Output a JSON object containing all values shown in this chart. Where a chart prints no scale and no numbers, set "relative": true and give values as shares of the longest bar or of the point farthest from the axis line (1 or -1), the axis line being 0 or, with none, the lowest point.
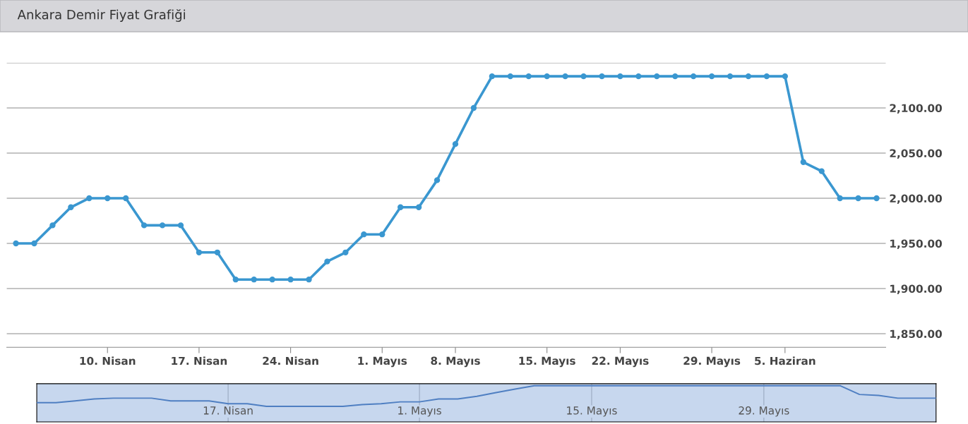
{
  "chart_data": [
    {
      "type": "line",
      "title": "Ankara Demir Fiyat Grafiği",
      "categories": [
        null,
        null,
        null,
        null,
        null,
        "10. Nisan",
        null,
        null,
        null,
        null,
        "17. Nisan",
        null,
        null,
        null,
        null,
        "24. Nisan",
        null,
        null,
        null,
        null,
        "1. Mayıs",
        null,
        null,
        null,
        "8. Mayıs",
        null,
        null,
        null,
        null,
        "15. Mayıs",
        null,
        null,
        null,
        "22. Mayıs",
        null,
        null,
        null,
        null,
        "29. Mayıs",
        null,
        null,
        null,
        "5. Haziran",
        null,
        null,
        null,
        null,
        null
      ],
      "series": [
        {
          "color": "#3a97d0",
          "values": [
            1950,
            1950,
            1970,
            1990,
            2000,
            2000,
            2000,
            1970,
            1970,
            1970,
            1940,
            1940,
            1910,
            1910,
            1910,
            1910,
            1910,
            1930,
            1940,
            1960,
            1960,
            1990,
            1990,
            2020,
            2060,
            2100,
            2135,
            2135,
            2135,
            2135,
            2135,
            2135,
            2135,
            2135,
            2135,
            2135,
            2135,
            2135,
            2135,
            2135,
            2135,
            2135,
            2135,
            2040,
            2030,
            2000,
            2000,
            2000
          ]
        }
      ],
      "ylim": [
        1835,
        2150
      ],
      "yticks": [
        {
          "value": 1850,
          "label": "1,850.00"
        },
        {
          "value": 1900,
          "label": "1,900.00"
        },
        {
          "value": 1950,
          "label": "1,950.00"
        },
        {
          "value": 2000,
          "label": "2,000.00"
        },
        {
          "value": 2050,
          "label": "2,050.00"
        },
        {
          "value": 2100,
          "label": "2,100.00"
        },
        {
          "value": 2150,
          "label": null
        }
      ],
      "grid": "y",
      "marker": "circle",
      "line_style": "solid",
      "legend": false
    },
    {
      "type": "line",
      "relative": true,
      "categories": [
        null,
        null,
        null,
        null,
        null,
        null,
        null,
        null,
        null,
        null,
        "17. Nisan",
        null,
        null,
        null,
        null,
        null,
        null,
        null,
        null,
        null,
        "1. Mayıs",
        null,
        null,
        null,
        null,
        null,
        null,
        null,
        null,
        "15. Mayıs",
        null,
        null,
        null,
        null,
        null,
        null,
        null,
        null,
        "29. Mayıs",
        null,
        null,
        null,
        null,
        null,
        null,
        null,
        null,
        null
      ],
      "series": [
        {
          "color": "#4f7fc2",
          "values": [
            0.18,
            0.18,
            0.27,
            0.36,
            0.4,
            0.4,
            0.4,
            0.27,
            0.27,
            0.27,
            0.13,
            0.13,
            0,
            0,
            0,
            0,
            0,
            0.09,
            0.13,
            0.22,
            0.22,
            0.36,
            0.36,
            0.49,
            0.67,
            0.84,
            1,
            1,
            1,
            1,
            1,
            1,
            1,
            1,
            1,
            1,
            1,
            1,
            1,
            1,
            1,
            1,
            1,
            0.58,
            0.53,
            0.4,
            0.4,
            0.4
          ]
        }
      ],
      "grid": "x",
      "marker": "none",
      "line_style": "solid",
      "legend": false
    }
  ]
}
